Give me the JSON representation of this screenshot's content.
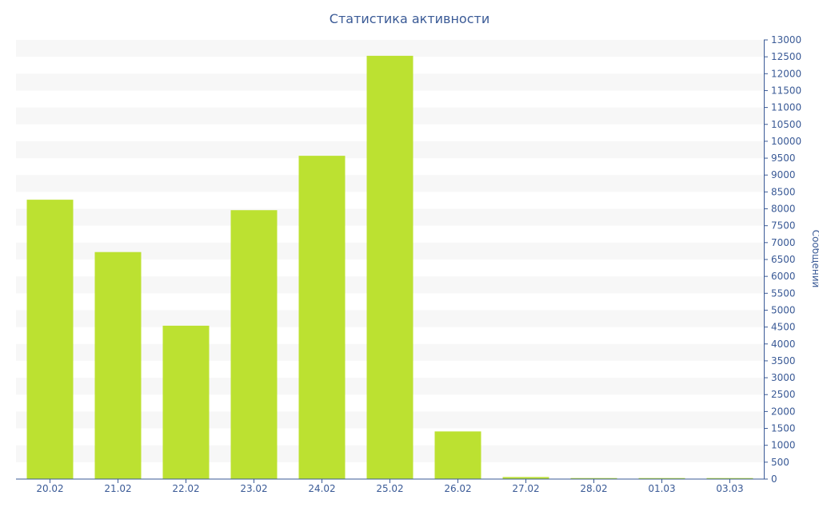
{
  "chart_data": {
    "type": "bar",
    "title": "Статистика активности",
    "xlabel": "",
    "ylabel": "Сообщений",
    "categories": [
      "20.02",
      "21.02",
      "22.02",
      "23.02",
      "24.02",
      "25.02",
      "26.02",
      "27.02",
      "28.02",
      "01.03",
      "03.03"
    ],
    "values": [
      8270,
      6720,
      4540,
      7960,
      9570,
      12530,
      1410,
      60,
      30,
      30,
      30
    ],
    "ylim": [
      0,
      13000
    ],
    "ytick_step": 500,
    "y_axis_side": "right",
    "grid": "alternating horizontal bands",
    "legend": "none"
  },
  "colors": {
    "bar": "#bce131",
    "axis": "#3a5a96",
    "band": "#f7f7f7",
    "text": "#3a5a96"
  }
}
